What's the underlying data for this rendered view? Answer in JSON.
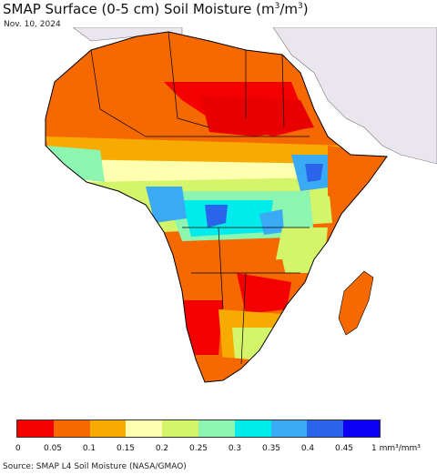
{
  "title_prefix": "SMAP Surface (0-5 cm) Soil Moisture (m",
  "title_sup1": "3",
  "title_mid": "/m",
  "title_sup2": "3",
  "title_suffix": ")",
  "date": "Nov. 10, 2024",
  "source": "Source: SMAP L4 Soil Moisture (NASA/GMAO)",
  "legend": {
    "colors": [
      "#f50000",
      "#f66800",
      "#f7ab00",
      "#ffffb0",
      "#d4f56a",
      "#8cf5b0",
      "#00ebeb",
      "#3aaaf5",
      "#2a64ea",
      "#0b00f5"
    ],
    "ticks": [
      "0",
      "0.05",
      "0.1",
      "0.15",
      "0.2",
      "0.25",
      "0.3",
      "0.35",
      "0.4",
      "0.45"
    ],
    "unit": "1 mm³/mm³"
  },
  "map": {
    "ocean_color": "#ffffff",
    "nonafrica_land_color": "#ebe6ee",
    "border_color": "#000000"
  }
}
